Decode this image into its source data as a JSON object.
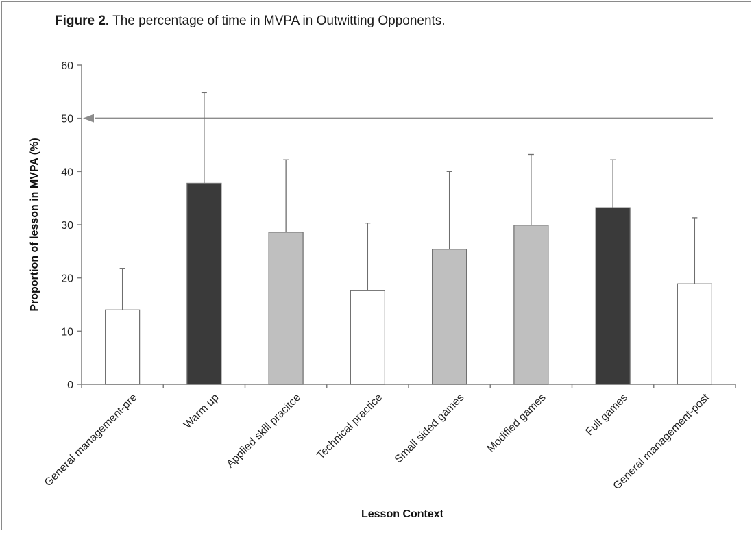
{
  "figure": {
    "label": "Figure 2.",
    "text": "The  percentage of time in MVPA in Outwitting Opponents."
  },
  "chart_data": {
    "type": "bar",
    "xlabel": "Lesson Context",
    "ylabel": "Proportion of lesson in MVPA (%)",
    "ylim": [
      0,
      60
    ],
    "yticks": [
      0,
      10,
      20,
      30,
      40,
      50,
      60
    ],
    "grid": false,
    "legend": "none",
    "reference_line": {
      "y": 50
    },
    "categories": [
      "General management-pre",
      "Warm up",
      "Applied skill pracitce",
      "Technical practice",
      "Small sided games",
      "Modified games",
      "Full games",
      "General management-post"
    ],
    "values": [
      14,
      37.8,
      28.6,
      17.6,
      25.4,
      29.9,
      33.2,
      18.9
    ],
    "error_upper": [
      21.8,
      54.8,
      42.2,
      30.3,
      40.0,
      43.2,
      42.2,
      31.3
    ],
    "bar_colors": [
      "#ffffff",
      "#3a3a3a",
      "#bfbfbf",
      "#ffffff",
      "#bfbfbf",
      "#bfbfbf",
      "#3a3a3a",
      "#ffffff"
    ]
  }
}
